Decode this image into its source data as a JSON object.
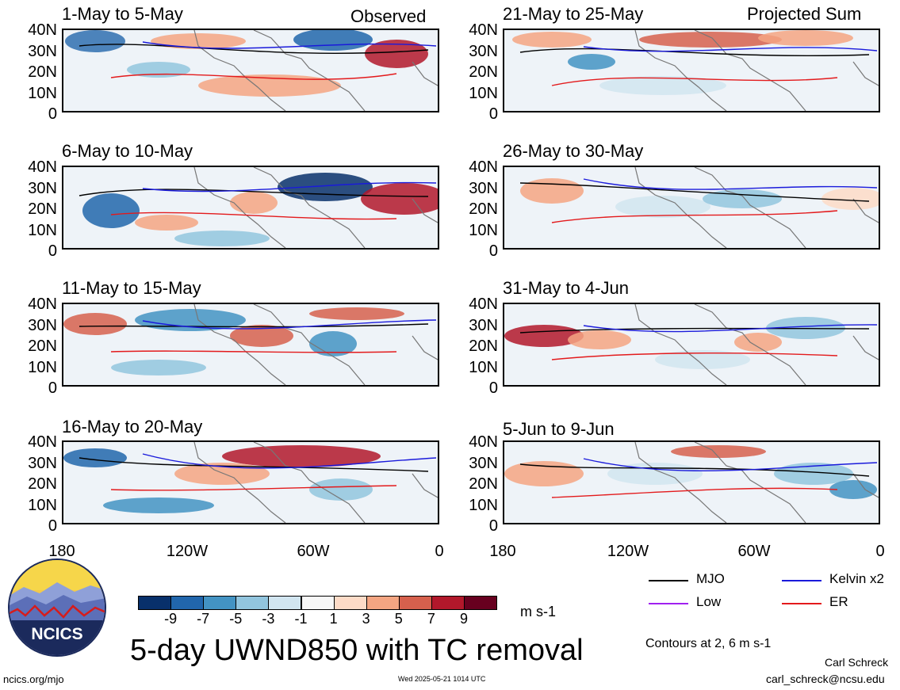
{
  "panels": [
    {
      "title": "1-May to 5-May",
      "tag": "Observed"
    },
    {
      "title": "21-May to 25-May",
      "tag": "Projected Sum"
    },
    {
      "title": "6-May to 10-May",
      "tag": ""
    },
    {
      "title": "26-May to 30-May",
      "tag": ""
    },
    {
      "title": "11-May to 15-May",
      "tag": ""
    },
    {
      "title": "31-May to 4-Jun",
      "tag": ""
    },
    {
      "title": "16-May to 20-May",
      "tag": ""
    },
    {
      "title": "5-Jun to 9-Jun",
      "tag": ""
    }
  ],
  "lat_labels": [
    "40N",
    "30N",
    "20N",
    "10N",
    "0"
  ],
  "lon_labels": [
    "180",
    "120W",
    "60W",
    "0"
  ],
  "colorbar": {
    "labels": [
      "-9",
      "-7",
      "-5",
      "-3",
      "-1",
      "1",
      "3",
      "5",
      "7",
      "9"
    ],
    "colors": [
      "#08306b",
      "#2166ac",
      "#4393c3",
      "#92c5de",
      "#d1e5f0",
      "#f7f7f7",
      "#fddbc7",
      "#f4a582",
      "#d6604d",
      "#b2182b",
      "#67001f"
    ],
    "unit": "m s-1"
  },
  "legend": [
    {
      "label": "MJO",
      "color": "#000000"
    },
    {
      "label": "Kelvin x2",
      "color": "#1a1adb"
    },
    {
      "label": "Low",
      "color": "#a020f0"
    },
    {
      "label": "ER",
      "color": "#e31a1c"
    }
  ],
  "contours_note": "Contours at 2, 6 m s-1",
  "main_title": "5-day UWND850 with TC removal",
  "logo_text": "NCICS",
  "url": "ncics.org/mjo",
  "timestamp": "Wed 2025-05-21 1014 UTC",
  "author": "Carl Schreck",
  "email": "carl_schreck@ncsu.edu"
}
